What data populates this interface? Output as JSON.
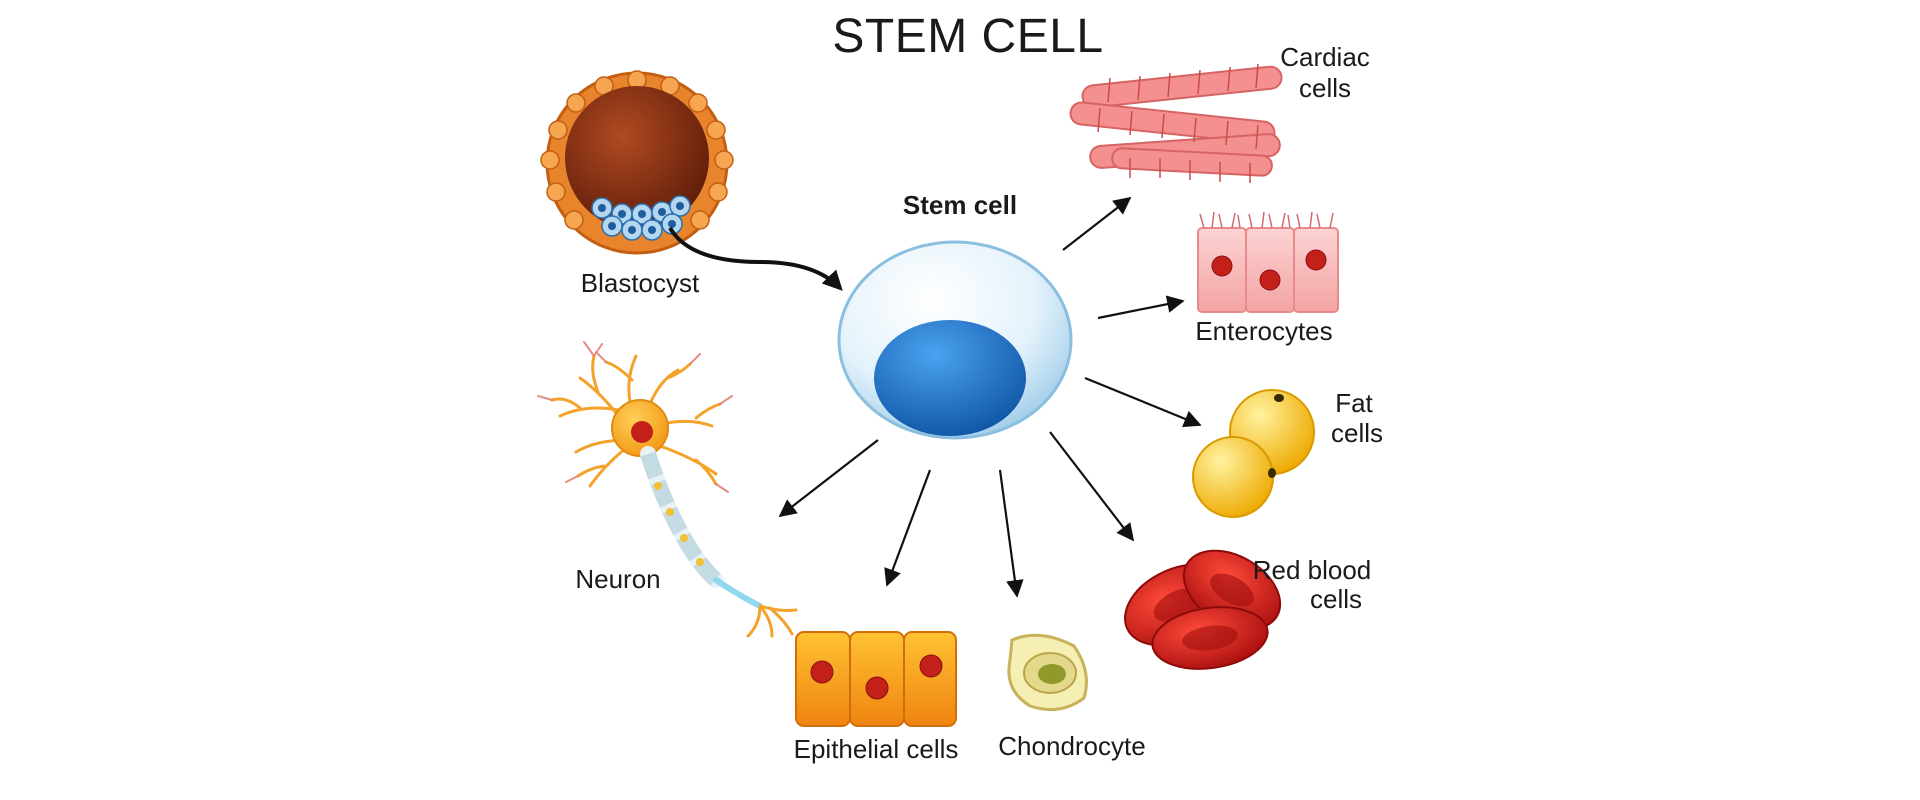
{
  "title": "STEM CELL",
  "center": {
    "label": "Stem cell"
  },
  "labels": {
    "blastocyst": "Blastocyst",
    "cardiac_1": "Cardiac",
    "cardiac_2": "cells",
    "enterocytes": "Enterocytes",
    "fat_1": "Fat",
    "fat_2": "cells",
    "rbc_1": "Red blood",
    "rbc_2": "cells",
    "neuron": "Neuron",
    "epithelial": "Epithelial cells",
    "chondrocyte": "Chondrocyte"
  },
  "colors": {
    "stem_membrane": "#dbeef9",
    "stem_nucleus": "#1a73c8",
    "blastocyst_shell": "#e8842c",
    "blastocyst_inner": "#7a2a10",
    "cardiac": "#f08a8a",
    "enterocyte": "#f6b7b7",
    "fat": "#f7c91e",
    "rbc": "#d41a1a",
    "neuron": "#f5a623",
    "epithelial": "#f49a1c",
    "chondrocyte": "#f3eeb0"
  }
}
